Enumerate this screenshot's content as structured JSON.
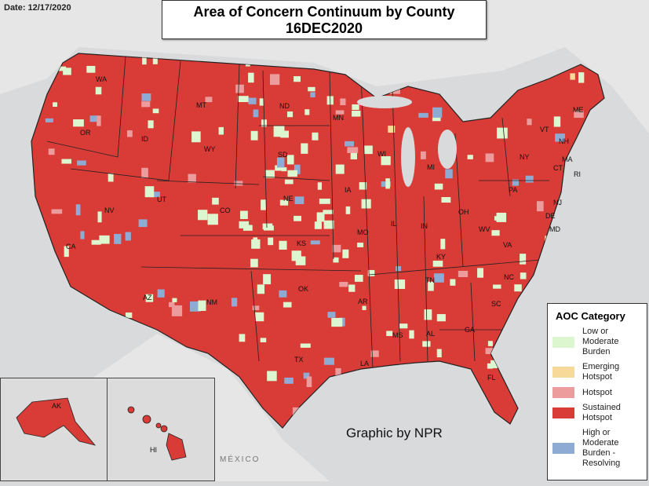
{
  "date_label": "Date: 12/17/2020",
  "title": {
    "line1": "Area of Concern Continuum by County",
    "line2": "16DEC2020"
  },
  "legend": {
    "title": "AOC Category",
    "items": [
      {
        "label": "Low or Moderate Burden",
        "color": "#dcf7d0"
      },
      {
        "label": "Emerging Hotspot",
        "color": "#f7d99a"
      },
      {
        "label": "Hotspot",
        "color": "#ec9c9c"
      },
      {
        "label": "Sustained Hotspot",
        "color": "#d93b36"
      },
      {
        "label": "High or Moderate Burden - Resolving",
        "color": "#8eabd4"
      }
    ]
  },
  "credit": "Graphic by NPR",
  "basemap_label": "MÉXICO",
  "states": [
    "WA",
    "OR",
    "ID",
    "MT",
    "WY",
    "ND",
    "SD",
    "NE",
    "CO",
    "UT",
    "NV",
    "CA",
    "AZ",
    "NM",
    "KS",
    "OK",
    "TX",
    "MN",
    "IA",
    "MO",
    "AR",
    "LA",
    "MS",
    "AL",
    "TN",
    "KY",
    "IL",
    "IN",
    "OH",
    "MI",
    "WI",
    "PA",
    "NY",
    "VT",
    "NH",
    "ME",
    "MA",
    "CT",
    "RI",
    "NJ",
    "DE",
    "MD",
    "WV",
    "VA",
    "NC",
    "SC",
    "GA",
    "FL",
    "AK",
    "HI"
  ]
}
